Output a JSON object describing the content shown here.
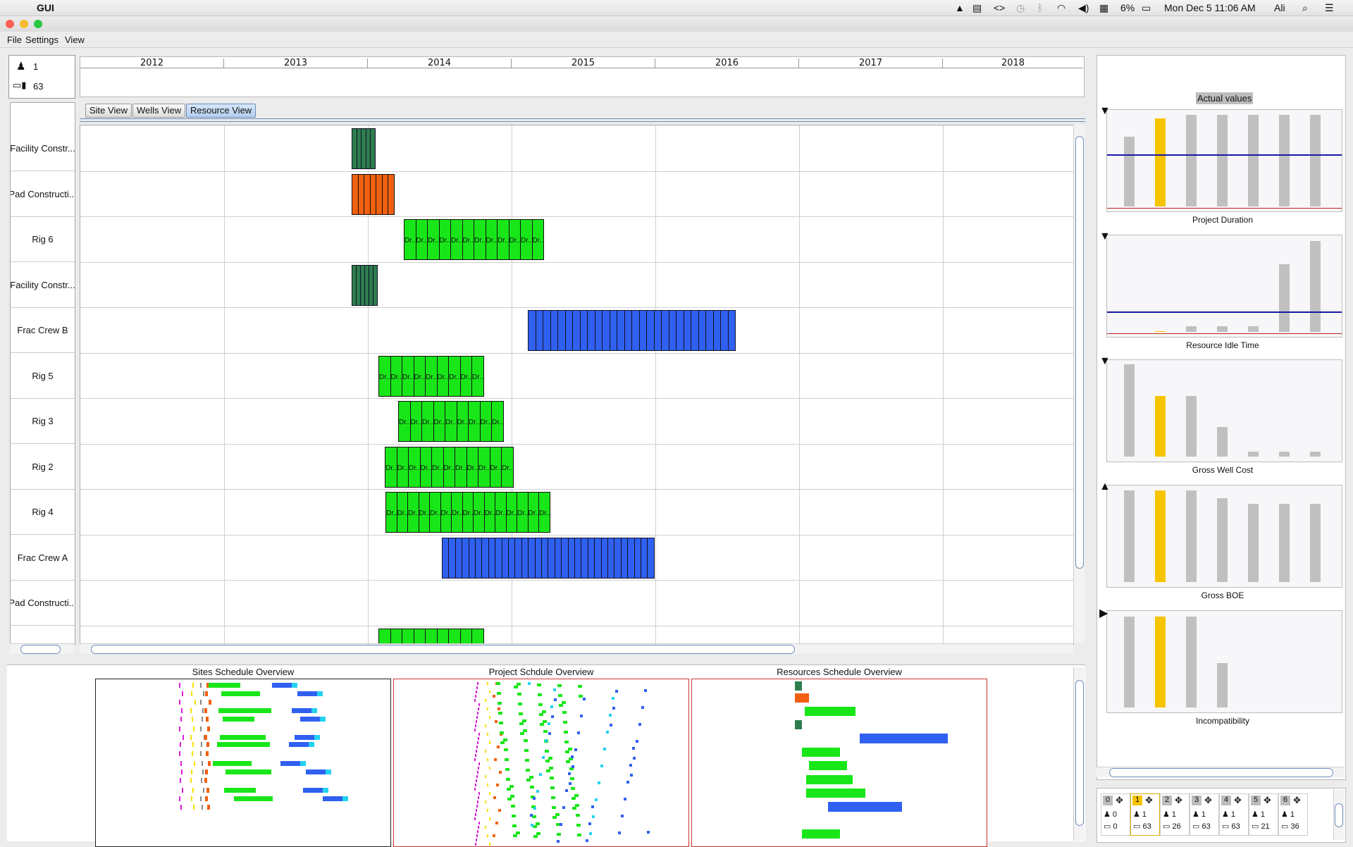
{
  "menubar": {
    "app_name": "GUI",
    "battery": "6%",
    "datetime": "Mon Dec 5  11:06 AM",
    "user": "Ali"
  },
  "app_menu": [
    "File",
    "Settings",
    "View"
  ],
  "counter": {
    "people": "1",
    "devices": "63"
  },
  "years": [
    "2012",
    "2013",
    "2014",
    "2015",
    "2016",
    "2017",
    "2018"
  ],
  "tabs": [
    "Site View",
    "Wells View",
    "Resource View"
  ],
  "active_tab": "Resource View",
  "rows": [
    "Facility Constr...",
    "Pad Constructi...",
    "Rig 6",
    "Facility Constr...",
    "Frac Crew B",
    "Rig 5",
    "Rig 3",
    "Rig 2",
    "Rig 4",
    "Frac Crew A",
    "Pad Constructi..."
  ],
  "segment_label": "Dr...",
  "colors": {
    "facility": "#2e7d4f",
    "pad": "#f06010",
    "rig": "#19e619",
    "frac": "#3060f0",
    "frac_light": "#22d2f0",
    "magenta": "#d81ed8",
    "yellow": "#f6e000",
    "orange_bar": "#f6c400",
    "kpi_bar": "#c0c0c0",
    "blue_line": "#1818a8",
    "red_line": "#c02020"
  },
  "overviews": {
    "sites": "Sites Schedule Overview",
    "project": "Project Schdule Overview",
    "resources": "Resources Schedule Overview"
  },
  "kpi": {
    "header": "Actual values",
    "charts": [
      {
        "label": "Project Duration",
        "arrow": "down",
        "values": [
          0.74,
          0.93,
          0.97,
          0.97,
          0.97,
          0.97,
          0.97
        ],
        "highlight": 1,
        "blue_line": 0.55
      },
      {
        "label": "Resource Idle Time",
        "arrow": "down",
        "values": [
          0.0,
          0.01,
          0.06,
          0.06,
          0.06,
          0.72,
          0.96
        ],
        "highlight": 1,
        "blue_line": 0.23
      },
      {
        "label": "Gross Well Cost",
        "arrow": "down",
        "values": [
          0.98,
          0.64,
          0.64,
          0.31,
          0.05,
          0.05,
          0.05
        ],
        "highlight": 1,
        "blue_line": null
      },
      {
        "label": "Gross BOE",
        "arrow": "up",
        "values": [
          0.97,
          0.97,
          0.97,
          0.89,
          0.83,
          0.83,
          0.83
        ],
        "highlight": 1,
        "blue_line": null
      },
      {
        "label": "Incompatibility",
        "arrow": "right",
        "values": [
          0.96,
          0.96,
          0.96,
          0.47,
          0.0,
          0.0,
          0.0
        ],
        "highlight": 1,
        "blue_line": null
      }
    ]
  },
  "scenarios": [
    {
      "id": "0",
      "people": "0",
      "devices": "0",
      "selected": false
    },
    {
      "id": "1",
      "people": "1",
      "devices": "63",
      "selected": true
    },
    {
      "id": "2",
      "people": "1",
      "devices": "26",
      "selected": false
    },
    {
      "id": "3",
      "people": "1",
      "devices": "63",
      "selected": false
    },
    {
      "id": "4",
      "people": "1",
      "devices": "63",
      "selected": false
    },
    {
      "id": "5",
      "people": "1",
      "devices": "21",
      "selected": false
    },
    {
      "id": "6",
      "people": "1",
      "devices": "36",
      "selected": false
    }
  ]
}
